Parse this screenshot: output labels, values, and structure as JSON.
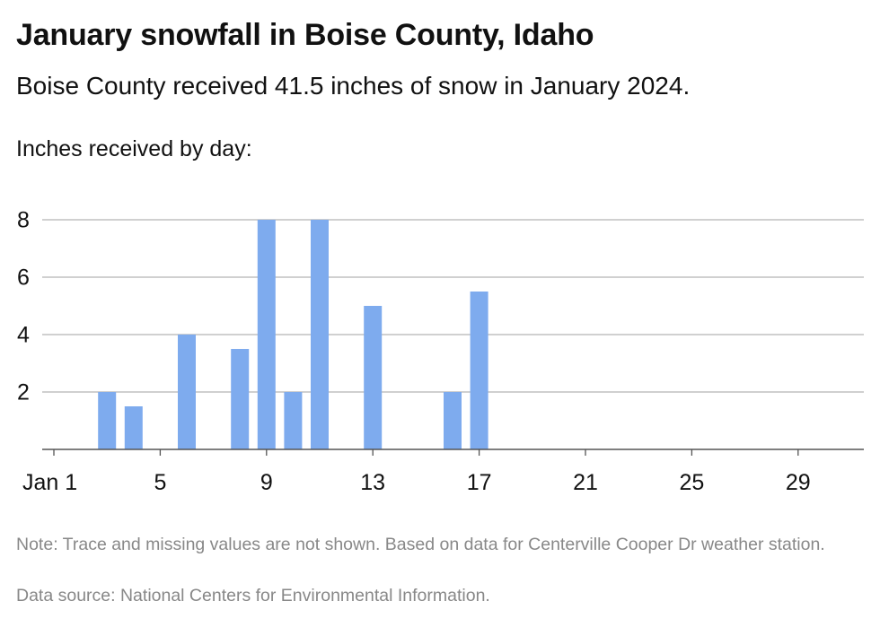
{
  "header": {
    "title": "January snowfall in Boise County, Idaho",
    "subtitle": "Boise County received 41.5 inches of snow in January 2024.",
    "lead": "Inches received by day:"
  },
  "footer": {
    "note": "Note: Trace and missing values are not shown. Based on data for Centerville Cooper Dr weather station.",
    "source": "Data source: National Centers for Environmental Information."
  },
  "chart_data": {
    "type": "bar",
    "title": "January snowfall in Boise County, Idaho",
    "xlabel": "",
    "ylabel": "",
    "unit": "inches",
    "x_day_range": [
      1,
      31
    ],
    "x_ticks": [
      {
        "day": 1,
        "label": "Jan 1"
      },
      {
        "day": 5,
        "label": "5"
      },
      {
        "day": 9,
        "label": "9"
      },
      {
        "day": 13,
        "label": "13"
      },
      {
        "day": 17,
        "label": "17"
      },
      {
        "day": 21,
        "label": "21"
      },
      {
        "day": 25,
        "label": "25"
      },
      {
        "day": 29,
        "label": "29"
      }
    ],
    "y_ticks": [
      2,
      4,
      6,
      8
    ],
    "ylim": [
      0,
      8
    ],
    "grid": true,
    "bar_color": "#7eabee",
    "points": [
      {
        "day": 3,
        "value": 2
      },
      {
        "day": 4,
        "value": 1.5
      },
      {
        "day": 6,
        "value": 4
      },
      {
        "day": 8,
        "value": 3.5
      },
      {
        "day": 9,
        "value": 8
      },
      {
        "day": 10,
        "value": 2
      },
      {
        "day": 11,
        "value": 8
      },
      {
        "day": 13,
        "value": 5
      },
      {
        "day": 16,
        "value": 2
      },
      {
        "day": 17,
        "value": 5.5
      }
    ]
  }
}
